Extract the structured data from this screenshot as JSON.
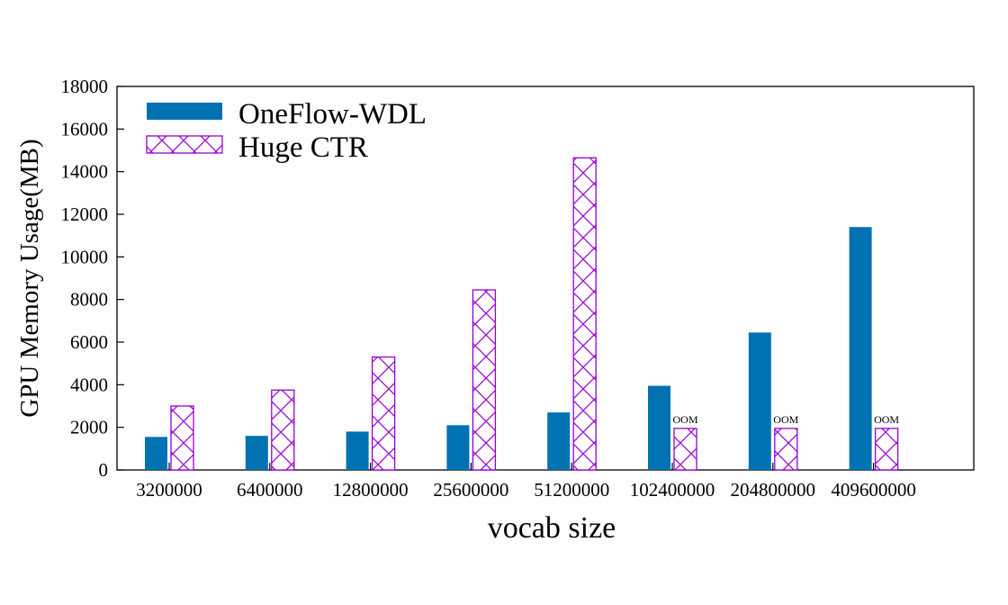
{
  "chart_data": {
    "type": "bar",
    "xlabel": "vocab size",
    "ylabel": "GPU Memory Usage(MB)",
    "categories": [
      "3200000",
      "6400000",
      "12800000",
      "25600000",
      "51200000",
      "102400000",
      "204800000",
      "409600000"
    ],
    "ylim": [
      0,
      18000
    ],
    "yticks": [
      0,
      2000,
      4000,
      6000,
      8000,
      10000,
      12000,
      14000,
      16000,
      18000
    ],
    "grid": false,
    "legend_position": "top-left",
    "series": [
      {
        "name": "OneFlow-WDL",
        "color": "#0072b2",
        "pattern": "solid",
        "values": [
          1550,
          1600,
          1800,
          2100,
          2700,
          3950,
          6450,
          11400
        ]
      },
      {
        "name": "Huge CTR",
        "color": "#9400d3",
        "pattern": "crosshatch",
        "values": [
          3000,
          3750,
          5300,
          8450,
          14650,
          1950,
          1950,
          1950
        ]
      }
    ],
    "annotations": [
      {
        "category": "102400000",
        "series": "Huge CTR",
        "text": "OOM"
      },
      {
        "category": "204800000",
        "series": "Huge CTR",
        "text": "OOM"
      },
      {
        "category": "409600000",
        "series": "Huge CTR",
        "text": "OOM"
      }
    ]
  }
}
